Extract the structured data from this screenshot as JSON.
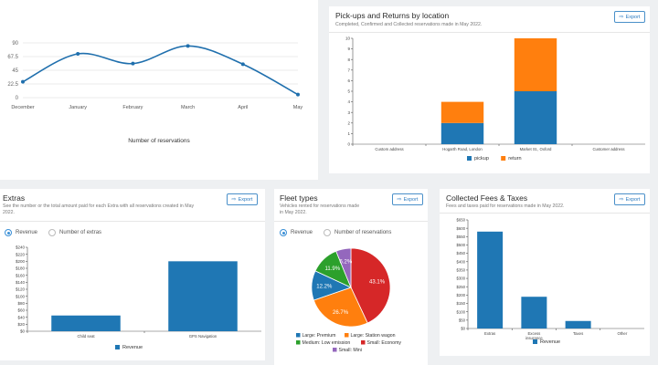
{
  "reservations_chart": {
    "xlabel": "Number of reservations",
    "chart_data": {
      "type": "line",
      "categories": [
        "December",
        "January",
        "February",
        "March",
        "April",
        "May"
      ],
      "values": [
        26,
        72,
        56,
        85,
        55,
        5
      ],
      "ylim": [
        0,
        90
      ],
      "yticks": [
        "0",
        "22.5",
        "45",
        "67.5",
        "90"
      ],
      "color": "#1f6fad"
    }
  },
  "pickups": {
    "title": "Pick-ups and Returns by location",
    "subtitle": "Completed, Confirmed and Collected reservations made in May 2022.",
    "export_label": "Export",
    "chart_data": {
      "type": "bar",
      "stacked": true,
      "categories": [
        "Custom address",
        "Hogarth Road, London",
        "Market St., Oxford",
        "Customer address"
      ],
      "series": [
        {
          "name": "pickup",
          "values": [
            0,
            2,
            5,
            0
          ],
          "color": "#1f77b4"
        },
        {
          "name": "return",
          "values": [
            0,
            2,
            5,
            0
          ],
          "color": "#ff7f0e"
        }
      ],
      "ylim": [
        0,
        10
      ],
      "yticks": [
        "0",
        "1",
        "2",
        "3",
        "4",
        "5",
        "6",
        "7",
        "8",
        "9",
        "10"
      ]
    }
  },
  "extras": {
    "title": "Extras",
    "subtitle": "See the number or the total amount paid for each Extra with all reservations created in May 2022.",
    "export_label": "Export",
    "radio_revenue": "Revenue",
    "radio_count": "Number of extras",
    "chart_data": {
      "type": "bar",
      "categories": [
        "Child seat",
        "GPS Navigation"
      ],
      "series": [
        {
          "name": "Revenue",
          "values": [
            45,
            200
          ],
          "color": "#1f77b4"
        }
      ],
      "ylim": [
        0,
        240
      ],
      "yticks": [
        "$0",
        "$20",
        "$40",
        "$60",
        "$80",
        "$100",
        "$120",
        "$140",
        "$160",
        "$180",
        "$200",
        "$220",
        "$240"
      ]
    }
  },
  "fleet": {
    "title": "Fleet types",
    "subtitle": "Vehicles rented for reservations made in May 2022.",
    "export_label": "Export",
    "radio_revenue": "Revenue",
    "radio_count": "Number of reservations",
    "chart_data": {
      "type": "pie",
      "slices": [
        {
          "label": "Small: Economy",
          "value": 43.1,
          "text": "43.1%",
          "color": "#d62728"
        },
        {
          "label": "Large: Station wagon",
          "value": 26.7,
          "text": "26.7%",
          "color": "#ff7f0e"
        },
        {
          "label": "Large: Premium",
          "value": 12.2,
          "text": "12.2%",
          "color": "#1f77b4"
        },
        {
          "label": "Medium: Low emission",
          "value": 11.9,
          "text": "11.9%",
          "color": "#2ca02c"
        },
        {
          "label": "Small: Mini",
          "value": 6.2,
          "text": "6.2%",
          "color": "#9467bd"
        }
      ],
      "legend": [
        {
          "label": "Large: Premium",
          "color": "#1f77b4"
        },
        {
          "label": "Large: Station wagon",
          "color": "#ff7f0e"
        },
        {
          "label": "Medium: Low emission",
          "color": "#2ca02c"
        },
        {
          "label": "Small: Economy",
          "color": "#d62728"
        },
        {
          "label": "Small: Mini",
          "color": "#9467bd"
        }
      ]
    }
  },
  "fees": {
    "title": "Collected Fees & Taxes",
    "subtitle": "Fees and taxes paid for reservations made in May 2022.",
    "export_label": "Export",
    "chart_data": {
      "type": "bar",
      "categories": [
        "Extras",
        "Excess insurance",
        "Taxes",
        "Other"
      ],
      "series": [
        {
          "name": "Revenue",
          "values": [
            580,
            190,
            45,
            0
          ],
          "color": "#1f77b4"
        }
      ],
      "ylim": [
        0,
        650
      ],
      "yticks": [
        "$0",
        "$50",
        "$100",
        "$150",
        "$200",
        "$250",
        "$300",
        "$350",
        "$400",
        "$450",
        "$500",
        "$550",
        "$600",
        "$650"
      ]
    }
  }
}
